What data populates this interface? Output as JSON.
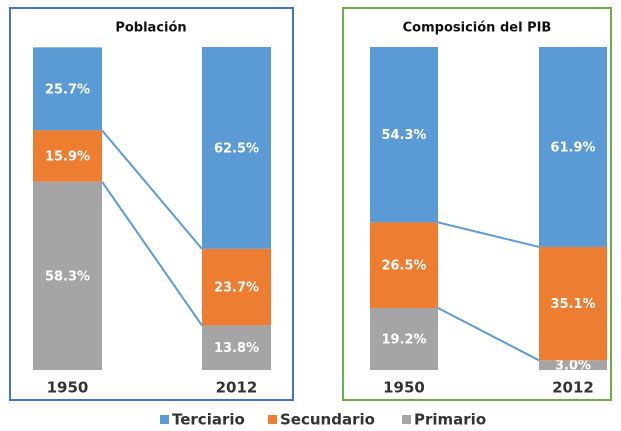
{
  "chart_data": [
    {
      "type": "bar",
      "stacked": true,
      "title": "Población",
      "categories": [
        "1950",
        "2012"
      ],
      "series": [
        {
          "name": "Primario",
          "color": "#a5a5a5",
          "values": [
            58.3,
            13.8
          ],
          "value_labels": [
            "58.3%",
            "13.8%"
          ]
        },
        {
          "name": "Secundario",
          "color": "#ed7d31",
          "values": [
            15.9,
            23.7
          ],
          "value_labels": [
            "15.9%",
            "23.7%"
          ]
        },
        {
          "name": "Terciario",
          "color": "#5b9bd5",
          "values": [
            25.7,
            62.5
          ],
          "value_labels": [
            "25.7%",
            "62.5%"
          ]
        }
      ]
    },
    {
      "type": "bar",
      "stacked": true,
      "title": "Composición del PIB",
      "categories": [
        "1950",
        "2012"
      ],
      "series": [
        {
          "name": "Primario",
          "color": "#a5a5a5",
          "values": [
            19.2,
            3.0
          ],
          "value_labels": [
            "19.2%",
            "3.0%"
          ]
        },
        {
          "name": "Secundario",
          "color": "#ed7d31",
          "values": [
            26.5,
            35.1
          ],
          "value_labels": [
            "26.5%",
            "35.1%"
          ]
        },
        {
          "name": "Terciario",
          "color": "#5b9bd5",
          "values": [
            54.3,
            61.9
          ],
          "value_labels": [
            "54.3%",
            "61.9%"
          ]
        }
      ]
    }
  ]
}
